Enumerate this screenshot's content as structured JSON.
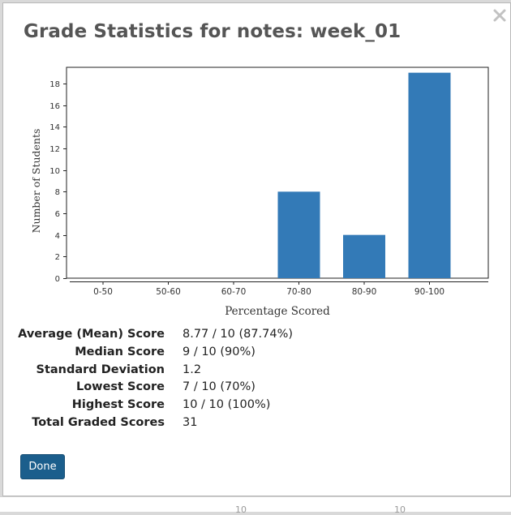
{
  "dialog": {
    "title": "Grade Statistics for notes: week_01",
    "close_icon": "close-icon",
    "done_label": "Done",
    "accent_color": "#1b5e8c"
  },
  "chart_data": {
    "type": "bar",
    "categories": [
      "0-50",
      "50-60",
      "60-70",
      "70-80",
      "80-90",
      "90-100"
    ],
    "values": [
      0,
      0,
      0,
      8,
      4,
      19
    ],
    "xlabel": "Percentage Scored",
    "ylabel": "Number of Students",
    "ylim": [
      0,
      19.5
    ],
    "yticks": [
      0,
      2,
      4,
      6,
      8,
      10,
      12,
      14,
      16,
      18
    ],
    "bar_color": "#337ab7",
    "grid": false,
    "legend": "none"
  },
  "stats": [
    {
      "label": "Average (Mean) Score",
      "value": "8.77 / 10 (87.74%)"
    },
    {
      "label": "Median Score",
      "value": "9 / 10 (90%)"
    },
    {
      "label": "Standard Deviation",
      "value": "1.2"
    },
    {
      "label": "Lowest Score",
      "value": "7 / 10 (70%)"
    },
    {
      "label": "Highest Score",
      "value": "10 / 10 (100%)"
    },
    {
      "label": "Total Graded Scores",
      "value": "31"
    }
  ],
  "background": {
    "fragments": [
      "10",
      "10"
    ]
  }
}
